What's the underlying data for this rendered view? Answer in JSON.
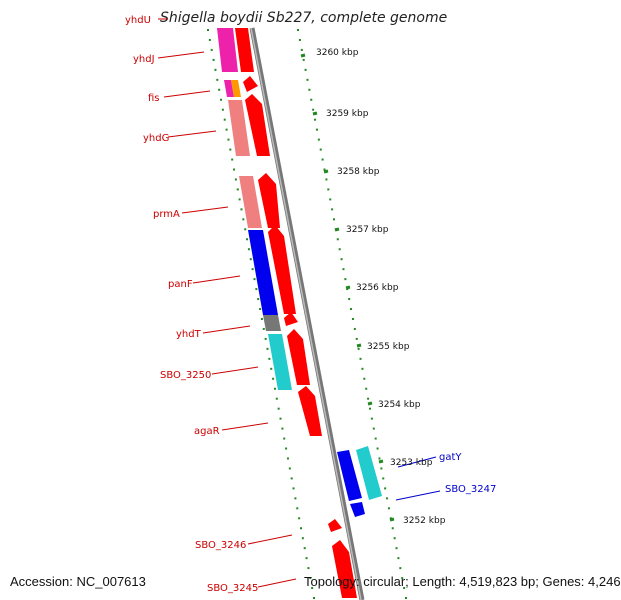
{
  "title": "Shigella boydii Sb227, complete genome",
  "scale_labels": [
    "3260 kbp",
    "3259 kbp",
    "3258 kbp",
    "3257 kbp",
    "3256 kbp",
    "3255 kbp",
    "3254 kbp",
    "3253 kbp",
    "3252 kbp"
  ],
  "gene_labels": [
    {
      "name": "yhdU",
      "color": "#cc0000"
    },
    {
      "name": "yhdJ",
      "color": "#cc0000"
    },
    {
      "name": "fis",
      "color": "#cc0000"
    },
    {
      "name": "yhdG",
      "color": "#cc0000"
    },
    {
      "name": "prmA",
      "color": "#cc0000"
    },
    {
      "name": "panF",
      "color": "#cc0000"
    },
    {
      "name": "yhdT",
      "color": "#cc0000"
    },
    {
      "name": "SBO_3250",
      "color": "#cc0000"
    },
    {
      "name": "agaR",
      "color": "#cc0000"
    },
    {
      "name": "gatY",
      "color": "#0000cc"
    },
    {
      "name": "SBO_3247",
      "color": "#0000cc"
    },
    {
      "name": "SBO_3246",
      "color": "#cc0000"
    },
    {
      "name": "SBO_3245",
      "color": "#cc0000"
    }
  ],
  "colors": {
    "gene_red": "#ff0000",
    "gene_blue": "#0000ee",
    "gene_cyan": "#22cccc",
    "gene_pink": "#f08080",
    "gene_magenta": "#ee22aa",
    "gene_gray": "#777777",
    "backbone": "#888888",
    "ticks": "#228822",
    "label_red": "#cc0000",
    "label_blue": "#0000cc"
  },
  "footer": {
    "accession": "Accession: NC_007613",
    "topology": "Topology: circular; Length: 4,519,823 bp; Genes: 4,246"
  }
}
